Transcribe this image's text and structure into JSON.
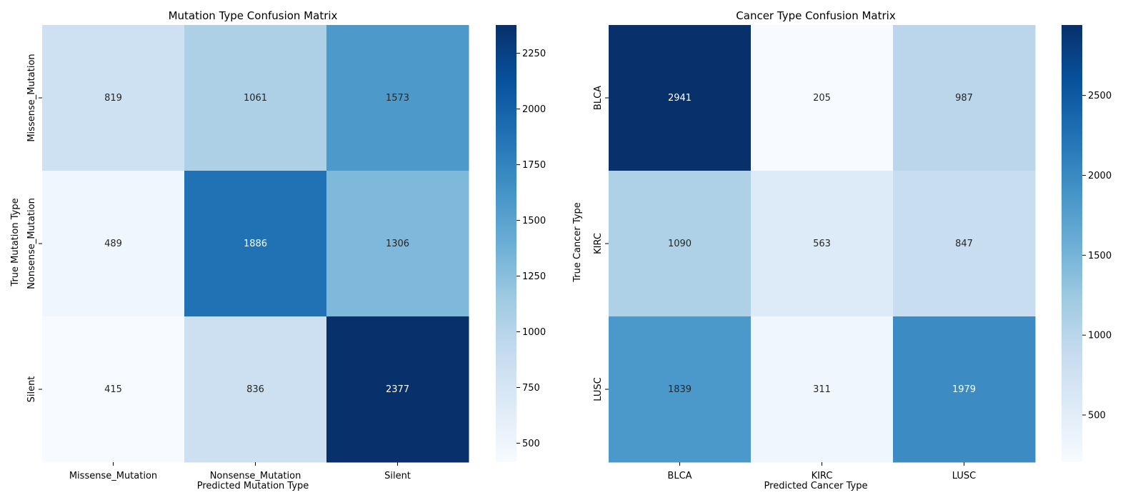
{
  "chart_data": [
    {
      "type": "heatmap",
      "title": "Mutation Type Confusion Matrix",
      "xlabel": "Predicted Mutation Type",
      "ylabel": "True Mutation Type",
      "x_categories": [
        "Missense_Mutation",
        "Nonsense_Mutation",
        "Silent"
      ],
      "y_categories": [
        "Missense_Mutation",
        "Nonsense_Mutation",
        "Silent"
      ],
      "values": [
        [
          819,
          1061,
          1573
        ],
        [
          489,
          1886,
          1306
        ],
        [
          415,
          836,
          2377
        ]
      ],
      "colormap": "Blues",
      "color_range": [
        415,
        2377
      ],
      "colorbar_ticks": [
        500,
        750,
        1000,
        1250,
        1500,
        1750,
        2000,
        2250
      ]
    },
    {
      "type": "heatmap",
      "title": "Cancer Type Confusion Matrix",
      "xlabel": "Predicted Cancer Type",
      "ylabel": "True Cancer Type",
      "x_categories": [
        "BLCA",
        "KIRC",
        "LUSC"
      ],
      "y_categories": [
        "BLCA",
        "KIRC",
        "LUSC"
      ],
      "values": [
        [
          2941,
          205,
          987
        ],
        [
          1090,
          563,
          847
        ],
        [
          1839,
          311,
          1979
        ]
      ],
      "colormap": "Blues",
      "color_range": [
        205,
        2941
      ],
      "colorbar_ticks": [
        500,
        1000,
        1500,
        2000,
        2500
      ]
    }
  ]
}
